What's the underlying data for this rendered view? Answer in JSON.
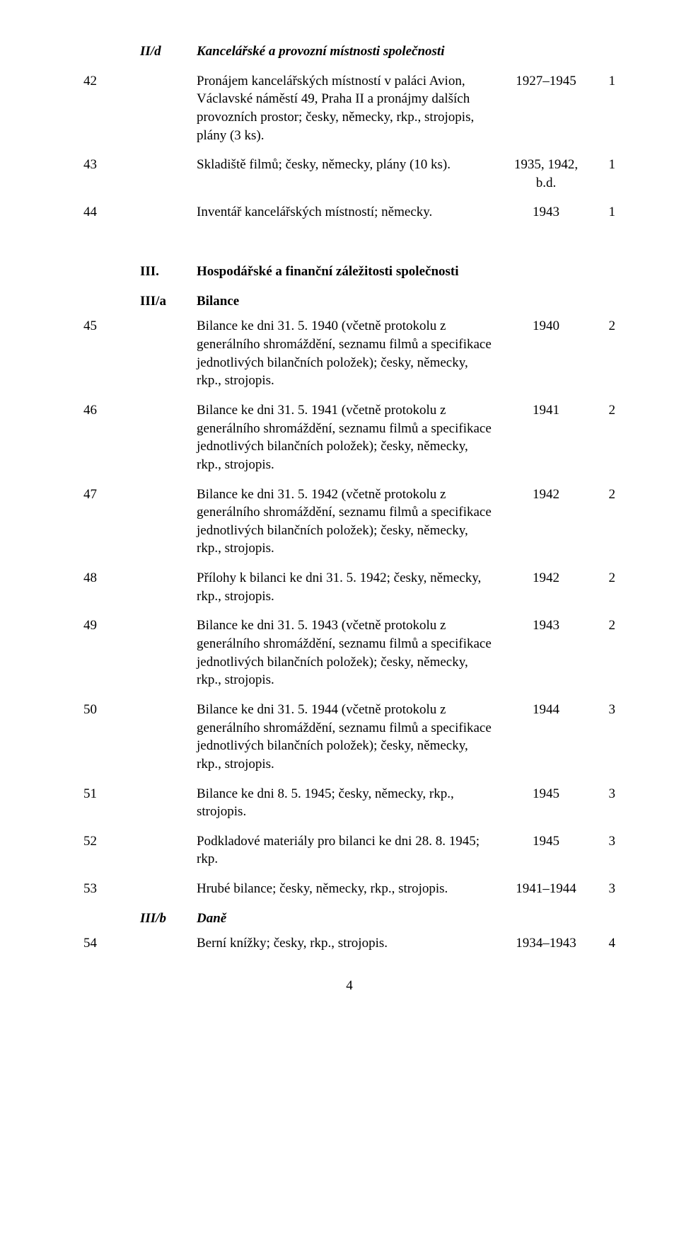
{
  "sections": {
    "IId_mark": "II/d",
    "IId_title": "Kancelářské a provozní místnosti společnosti",
    "III_mark": "III.",
    "III_title": "Hospodářské a finanční záležitosti společnosti",
    "IIIa_mark": "III/a",
    "IIIa_title": "Bilance",
    "IIIb_mark": "III/b",
    "IIIb_title": "Daně"
  },
  "rows": {
    "r42": {
      "id": "42",
      "desc": "Pronájem kancelářských místností v paláci Avion, Václavské náměstí 49, Praha II a pronájmy dalších provozních prostor; česky, německy, rkp., strojopis, plány (3 ks).",
      "date": "1927–1945",
      "ct": "1"
    },
    "r43": {
      "id": "43",
      "desc": "Skladiště filmů; česky, německy, plány (10 ks).",
      "date": "1935, 1942, b.d.",
      "ct": "1"
    },
    "r44": {
      "id": "44",
      "desc": "Inventář kancelářských místností; německy.",
      "date": "1943",
      "ct": "1"
    },
    "r45": {
      "id": "45",
      "desc": "Bilance ke dni 31. 5. 1940 (včetně protokolu z generálního shromáždění, seznamu filmů a specifikace jednotlivých bilančních položek); česky, německy, rkp., strojopis.",
      "date": "1940",
      "ct": "2"
    },
    "r46": {
      "id": "46",
      "desc": "Bilance ke dni 31. 5. 1941 (včetně protokolu z generálního shromáždění, seznamu filmů a specifikace jednotlivých bilančních položek); česky, německy, rkp., strojopis.",
      "date": "1941",
      "ct": "2"
    },
    "r47": {
      "id": "47",
      "desc": "Bilance ke dni 31. 5. 1942 (včetně protokolu z generálního shromáždění, seznamu filmů a specifikace jednotlivých bilančních položek); česky, německy, rkp., strojopis.",
      "date": "1942",
      "ct": "2"
    },
    "r48": {
      "id": "48",
      "desc": "Přílohy k bilanci ke dni 31. 5. 1942; česky, německy, rkp., strojopis.",
      "date": "1942",
      "ct": "2"
    },
    "r49": {
      "id": "49",
      "desc": "Bilance ke dni 31. 5. 1943 (včetně protokolu z generálního shromáždění, seznamu filmů a specifikace jednotlivých bilančních položek); česky, německy, rkp., strojopis.",
      "date": "1943",
      "ct": "2"
    },
    "r50": {
      "id": "50",
      "desc": "Bilance ke dni 31. 5. 1944 (včetně protokolu z generálního shromáždění, seznamu filmů a specifikace jednotlivých bilančních položek); česky, německy, rkp., strojopis.",
      "date": "1944",
      "ct": "3"
    },
    "r51": {
      "id": "51",
      "desc": "Bilance ke dni 8. 5. 1945; česky, německy, rkp., strojopis.",
      "date": "1945",
      "ct": "3"
    },
    "r52": {
      "id": "52",
      "desc": "Podkladové materiály pro bilanci ke dni 28. 8. 1945; rkp.",
      "date": "1945",
      "ct": "3"
    },
    "r53": {
      "id": "53",
      "desc": "Hrubé bilance; česky, německy, rkp., strojopis.",
      "date": "1941–1944",
      "ct": "3"
    },
    "r54": {
      "id": "54",
      "desc": "Berní knížky; česky, rkp., strojopis.",
      "date": "1934–1943",
      "ct": "4"
    }
  },
  "page_number": "4"
}
